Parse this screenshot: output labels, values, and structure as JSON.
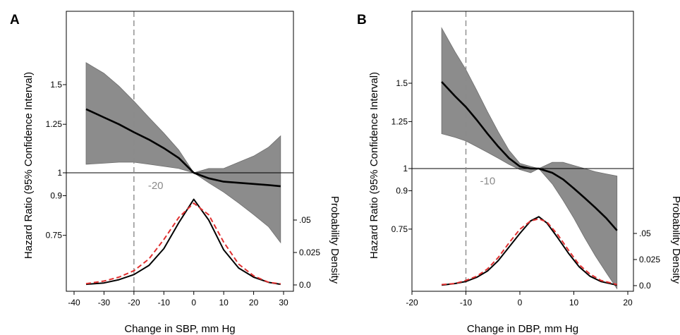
{
  "colors": {
    "band_fill": "#8c8c8c",
    "hr_line": "#000000",
    "density_observed": "#000000",
    "density_normal": "#e03030",
    "reference_dash": "#8a8a8a",
    "annotation_text": "#8a8a8a"
  },
  "chart_data": [
    {
      "panel": "A",
      "type": "line",
      "xlabel": "Change in SBP, mm Hg",
      "ylabel": "Hazard Ratio (95% Confidence Interval)",
      "y2label": "Probability Density",
      "xlim": [
        -40,
        30
      ],
      "x_ticks": [
        -40,
        -30,
        -20,
        -10,
        0,
        10,
        20,
        30
      ],
      "x_tick_labels": [
        "-40",
        "-30",
        "-20",
        "-10",
        "0",
        "10",
        "20",
        "30"
      ],
      "y_scale": "log",
      "y_ticks": [
        0.75,
        0.9,
        1,
        1.25,
        1.5
      ],
      "y_tick_labels": [
        "0.75",
        "0.9",
        "1",
        "1.25",
        "1.5"
      ],
      "y2_ticks": [
        0.0,
        0.025,
        0.05
      ],
      "y2_tick_labels": [
        "0.0",
        "0.025",
        ".05"
      ],
      "reference_hline": 1,
      "reference_vline": -20,
      "annotation": "-20",
      "hazard_ratio": {
        "x": [
          -36,
          -30,
          -25,
          -20,
          -15,
          -10,
          -5,
          0,
          5,
          10,
          15,
          20,
          25,
          29
        ],
        "y": [
          1.34,
          1.29,
          1.25,
          1.205,
          1.165,
          1.12,
          1.07,
          1.0,
          0.975,
          0.96,
          0.955,
          0.95,
          0.945,
          0.94
        ],
        "lower": [
          1.04,
          1.045,
          1.05,
          1.05,
          1.04,
          1.03,
          1.02,
          1.0,
          0.955,
          0.915,
          0.87,
          0.825,
          0.78,
          0.725
        ],
        "upper": [
          1.66,
          1.58,
          1.49,
          1.39,
          1.29,
          1.2,
          1.11,
          1.0,
          1.02,
          1.02,
          1.05,
          1.08,
          1.125,
          1.185
        ]
      },
      "density": {
        "x": [
          -36,
          -30,
          -25,
          -20,
          -15,
          -10,
          -5,
          0,
          5,
          10,
          15,
          20,
          25,
          29
        ],
        "observed": [
          0.0005,
          0.0015,
          0.004,
          0.008,
          0.015,
          0.028,
          0.048,
          0.066,
          0.05,
          0.027,
          0.013,
          0.006,
          0.002,
          0.0005
        ],
        "normal": [
          0.001,
          0.003,
          0.006,
          0.011,
          0.02,
          0.035,
          0.052,
          0.063,
          0.054,
          0.033,
          0.016,
          0.007,
          0.002,
          0.0008
        ]
      }
    },
    {
      "panel": "B",
      "type": "line",
      "xlabel": "Change in DBP, mm Hg",
      "ylabel": "Hazard Ratio (95% Confidence Interval)",
      "y2label": "Probability Density",
      "xlim": [
        -20,
        20
      ],
      "x_ticks": [
        -20,
        -10,
        0,
        10,
        20
      ],
      "x_tick_labels": [
        "-20",
        "-10",
        "0",
        "10",
        "20"
      ],
      "y_scale": "log",
      "y_ticks": [
        0.75,
        0.9,
        1,
        1.25,
        1.5
      ],
      "y_tick_labels": [
        "0.75",
        "0.9",
        "1",
        "1.25",
        "1.5"
      ],
      "y2_ticks": [
        0.0,
        0.025,
        0.05
      ],
      "y2_tick_labels": [
        "0.0",
        "0.025",
        ".05"
      ],
      "reference_hline": 1,
      "reference_vline": -10,
      "annotation": "-10",
      "hazard_ratio": {
        "x": [
          -14.5,
          -12,
          -10,
          -8,
          -6,
          -4,
          -2,
          0,
          2,
          3.5,
          6,
          8,
          10,
          12,
          14,
          16,
          18
        ],
        "y": [
          1.51,
          1.41,
          1.34,
          1.26,
          1.18,
          1.11,
          1.05,
          1.01,
          1.0,
          1.0,
          0.98,
          0.95,
          0.91,
          0.87,
          0.83,
          0.79,
          0.745
        ],
        "lower": [
          1.18,
          1.16,
          1.14,
          1.11,
          1.08,
          1.05,
          1.02,
          0.995,
          0.98,
          1.0,
          0.93,
          0.86,
          0.79,
          0.72,
          0.66,
          0.61,
          0.565
        ],
        "upper": [
          1.95,
          1.74,
          1.6,
          1.45,
          1.31,
          1.19,
          1.09,
          1.025,
          1.01,
          1.0,
          1.03,
          1.03,
          1.015,
          1.0,
          0.985,
          0.975,
          0.965
        ]
      },
      "density": {
        "x": [
          -14.5,
          -12,
          -10,
          -8,
          -6,
          -4,
          -2,
          0,
          2,
          3.5,
          5,
          7,
          9,
          11,
          13,
          15,
          18
        ],
        "observed": [
          0.0005,
          0.002,
          0.004,
          0.008,
          0.014,
          0.024,
          0.037,
          0.05,
          0.062,
          0.066,
          0.06,
          0.046,
          0.031,
          0.018,
          0.009,
          0.004,
          0.0005
        ],
        "normal": [
          0.001,
          0.002,
          0.005,
          0.009,
          0.016,
          0.027,
          0.041,
          0.054,
          0.062,
          0.064,
          0.061,
          0.049,
          0.034,
          0.02,
          0.011,
          0.005,
          0.001
        ]
      }
    }
  ]
}
